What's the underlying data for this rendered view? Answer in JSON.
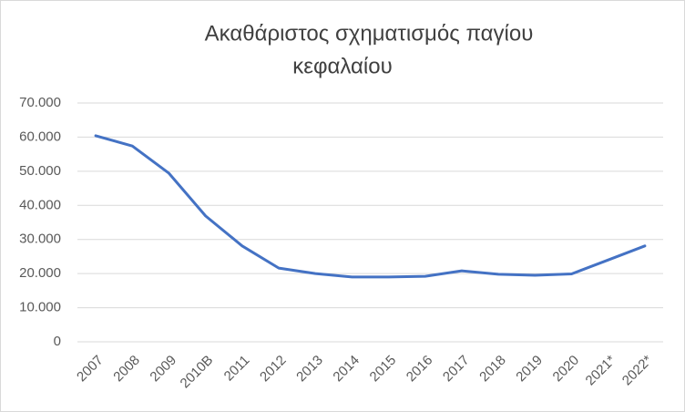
{
  "chart_data": {
    "type": "line",
    "title": [
      "Ακαθάριστος σχηματισμός  παγίου",
      "κεφαλαίου"
    ],
    "categories": [
      "2007",
      "2008",
      "2009",
      "2010B",
      "2011",
      "2012",
      "2013",
      "2014",
      "2015",
      "2016",
      "2017",
      "2018",
      "2019",
      "2020",
      "2021*",
      "2022*"
    ],
    "series": [
      {
        "color": "#4472c4",
        "values": [
          60400,
          57400,
          49400,
          36900,
          28100,
          21600,
          20000,
          19000,
          19000,
          19200,
          20800,
          19800,
          19500,
          19900,
          24000,
          28100
        ]
      }
    ],
    "ylim": [
      0,
      70000
    ],
    "yticks": [
      0,
      {
        "value": 10000,
        "label": "10.000"
      },
      {
        "value": 20000,
        "label": "20.000"
      },
      {
        "value": 30000,
        "label": "30.000"
      },
      {
        "value": 40000,
        "label": "40.000"
      },
      {
        "value": 50000,
        "label": "50.000"
      },
      {
        "value": 60000,
        "label": "60.000"
      },
      {
        "value": 70000,
        "label": "70.000"
      }
    ],
    "grid": true
  }
}
